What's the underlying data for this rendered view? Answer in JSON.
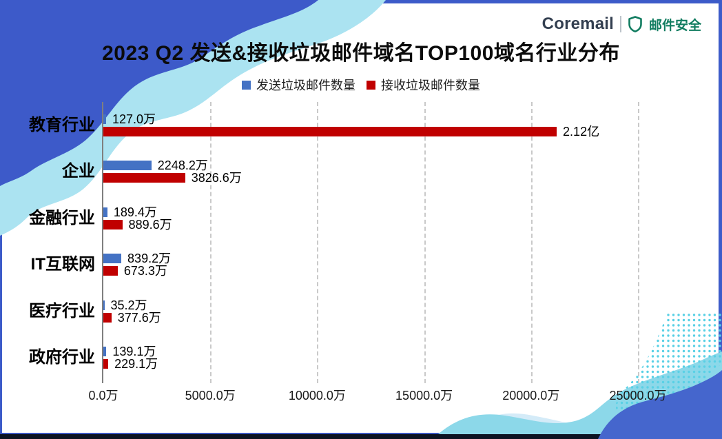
{
  "slide": {
    "title": "2023 Q2 发送&接收垃圾邮件域名TOP100域名行业分布"
  },
  "logo": {
    "brand": "Coremail",
    "product": "邮件安全"
  },
  "legend": {
    "items": [
      {
        "label": "发送垃圾邮件数量",
        "color": "#4472C4"
      },
      {
        "label": "接收垃圾邮件数量",
        "color": "#C00000"
      }
    ]
  },
  "chart_data": {
    "type": "bar",
    "orientation": "horizontal",
    "title": "2023 Q2 发送&接收垃圾邮件域名TOP100域名行业分布",
    "unit": "万",
    "categories": [
      "教育行业",
      "企业",
      "金融行业",
      "IT互联网",
      "医疗行业",
      "政府行业"
    ],
    "series": [
      {
        "name": "发送垃圾邮件数量",
        "color": "#4472C4",
        "values": [
          127.0,
          2248.2,
          189.4,
          839.2,
          35.2,
          139.1
        ],
        "data_labels": [
          "127.0万",
          "2248.2万",
          "189.4万",
          "839.2万",
          "35.2万",
          "139.1万"
        ]
      },
      {
        "name": "接收垃圾邮件数量",
        "color": "#C00000",
        "values": [
          21200,
          3826.6,
          889.6,
          673.3,
          377.6,
          229.1
        ],
        "data_labels": [
          "2.12亿",
          "3826.6万",
          "889.6万",
          "673.3万",
          "377.6万",
          "229.1万"
        ]
      }
    ],
    "x_axis": {
      "min": 0,
      "max": 25000,
      "tick_step": 5000,
      "tick_labels": [
        "0.0万",
        "5000.0万",
        "10000.0万",
        "15000.0万",
        "20000.0万",
        "25000.0万"
      ]
    },
    "grid": "vertical-dashed",
    "legend_position": "top"
  },
  "colors": {
    "frame_blue": "#3C5BC9",
    "wave_royal_tl": "#3D5AC9",
    "wave_cyan_tl": "#ABE3F1",
    "wave_royal_br": "#4566CD",
    "wave_cyan_br": "#8CD8E9",
    "wave_pale_br": "#D4EBF8",
    "dot_cyan": "#55CFE4",
    "footer_navy": "#0C1322",
    "axis_line": "#7F7F7F",
    "gridline": "#C9C9C9"
  }
}
